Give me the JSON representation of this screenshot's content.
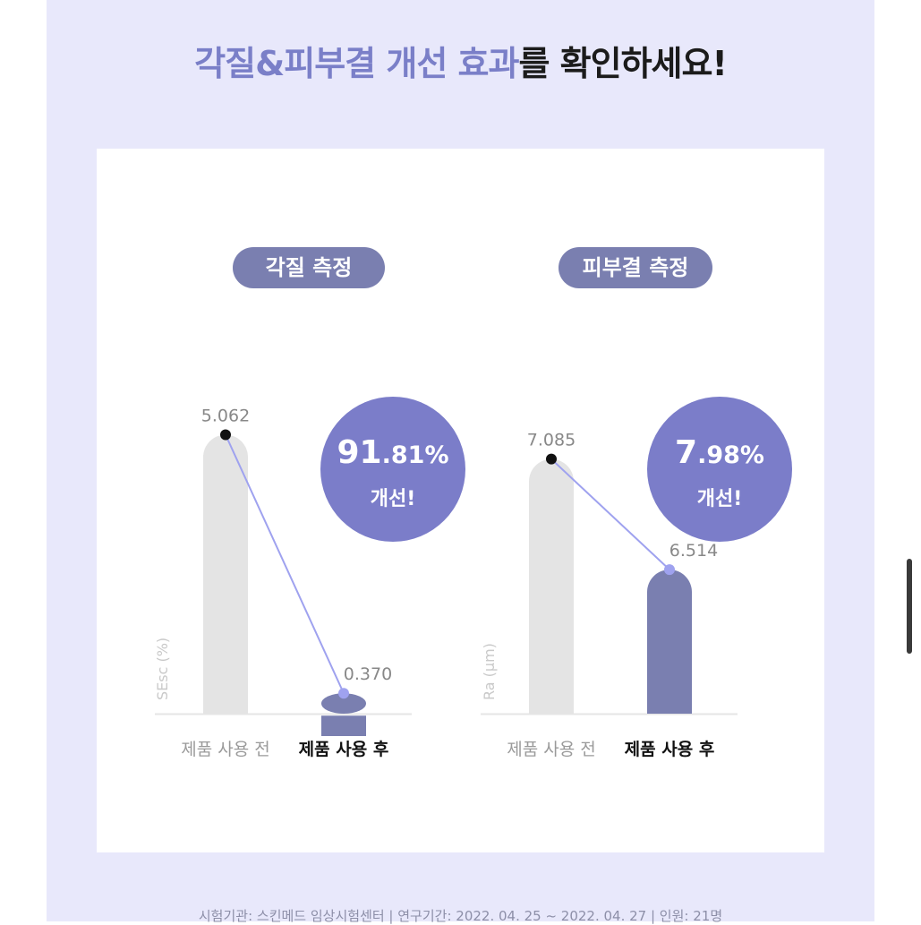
{
  "headline": {
    "highlight": "각질&피부결 개선 효과",
    "rest": "를 확인하세요!"
  },
  "chart_data": [
    {
      "type": "bar",
      "title": "각질 측정",
      "ylabel": "SEsc (%)",
      "categories": [
        "제품 사용 전",
        "제품 사용 후"
      ],
      "values": [
        5.062,
        0.37
      ],
      "value_labels": [
        "5.062",
        "0.370"
      ],
      "improvement": {
        "value": "91",
        "decimal": ".81%",
        "label": "개선!"
      },
      "ylim": [
        0,
        6.5
      ],
      "colors": {
        "before": "#e4e4e4",
        "after": "#7a7fb0",
        "line": "#9fa2ef"
      }
    },
    {
      "type": "bar",
      "title": "피부결 측정",
      "ylabel": "Ra (µm)",
      "categories": [
        "제품 사용 전",
        "제품 사용 후"
      ],
      "values": [
        7.085,
        6.514
      ],
      "value_labels": [
        "7.085",
        "6.514"
      ],
      "improvement": {
        "value": "7",
        "decimal": ".98%",
        "label": "개선!"
      },
      "ylim": [
        5.77,
        7.62
      ],
      "colors": {
        "before": "#e4e4e4",
        "after": "#7a7fb0",
        "line": "#9fa2ef"
      }
    }
  ],
  "footer": "시험기관: 스킨메드 임상시험센터 | 연구기간: 2022. 04. 25 ~ 2022. 04. 27 | 인원: 21명"
}
